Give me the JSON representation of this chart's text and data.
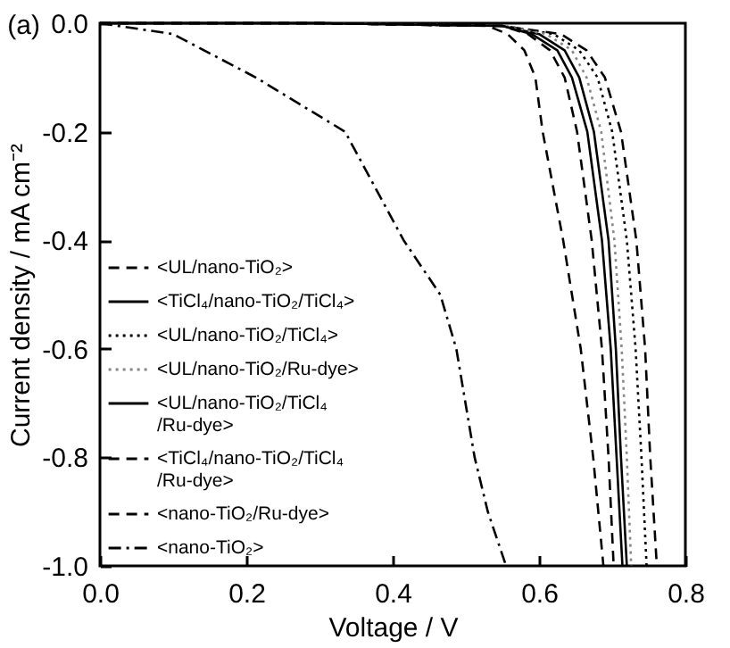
{
  "chart_data": {
    "type": "line",
    "title": "(a)",
    "xlabel": "Voltage / V",
    "ylabel": "Current density / mA cm⁻²",
    "xlim": [
      0,
      0.8
    ],
    "xticks": [
      {
        "value": 0,
        "label": "0.0"
      },
      {
        "value": 0.2,
        "label": "0.2"
      },
      {
        "value": 0.4,
        "label": "0.4"
      },
      {
        "value": 0.6,
        "label": "0.6"
      },
      {
        "value": 0.8,
        "label": "0.8"
      }
    ],
    "ylim": [
      -1.0,
      0
    ],
    "yticks": [
      {
        "value": 0,
        "label": "0.0"
      },
      {
        "value": -0.2,
        "label": "-0.2"
      },
      {
        "value": -0.4,
        "label": "-0.4"
      },
      {
        "value": -0.6,
        "label": "-0.6"
      },
      {
        "value": -0.8,
        "label": "-0.8"
      },
      {
        "value": -1.0,
        "label": "-1.0"
      }
    ],
    "legend": "bottom left",
    "grid": false,
    "marker": "none",
    "series": [
      {
        "name": "<UL/nano-TiO₂>",
        "color": "#000000",
        "line_style": "dashed",
        "x": [
          0,
          0.3,
          0.55,
          0.63,
          0.665,
          0.69,
          0.712,
          0.733,
          0.745,
          0.752,
          0.761
        ],
        "values": [
          0,
          0,
          -0.005,
          -0.02,
          -0.05,
          -0.1,
          -0.2,
          -0.4,
          -0.6,
          -0.8,
          -1.0
        ]
      },
      {
        "name": "<TiCl₄/nano-TiO₂/TiCl₄>",
        "color": "#000000",
        "line_style": "solid",
        "x": [
          0,
          0.3,
          0.55,
          0.6,
          0.635,
          0.655,
          0.675,
          0.695,
          0.705,
          0.712,
          0.72
        ],
        "values": [
          0,
          0,
          -0.005,
          -0.02,
          -0.05,
          -0.1,
          -0.2,
          -0.4,
          -0.6,
          -0.8,
          -1.0
        ]
      },
      {
        "name": "<UL/nano-TiO₂/TiCl₄>",
        "color": "#000000",
        "line_style": "dotted",
        "x": [
          0,
          0.3,
          0.55,
          0.62,
          0.655,
          0.68,
          0.7,
          0.72,
          0.732,
          0.74,
          0.747
        ],
        "values": [
          0,
          0,
          -0.005,
          -0.02,
          -0.05,
          -0.1,
          -0.2,
          -0.4,
          -0.6,
          -0.8,
          -1.0
        ]
      },
      {
        "name": "<UL/nano-TiO₂/Ru-dye>",
        "color": "#888888",
        "line_style": "dotted",
        "x": [
          0,
          0.3,
          0.55,
          0.61,
          0.645,
          0.665,
          0.685,
          0.703,
          0.713,
          0.72,
          0.726
        ],
        "values": [
          0,
          0,
          -0.005,
          -0.02,
          -0.05,
          -0.1,
          -0.2,
          -0.4,
          -0.6,
          -0.8,
          -1.0
        ]
      },
      {
        "name": "<UL/nano-TiO₂/TiCl₄/Ru-dye>",
        "color": "#000000",
        "line_style": "solid",
        "x": [
          0,
          0.3,
          0.55,
          0.59,
          0.625,
          0.645,
          0.666,
          0.686,
          0.698,
          0.706,
          0.714
        ],
        "values": [
          0,
          0,
          -0.005,
          -0.02,
          -0.05,
          -0.1,
          -0.2,
          -0.4,
          -0.6,
          -0.8,
          -1.0
        ]
      },
      {
        "name": "<TiCl₄/nano-TiO₂/TiCl₄/Ru-dye>",
        "color": "#000000",
        "line_style": "dashed",
        "x": [
          0,
          0.3,
          0.55,
          0.585,
          0.615,
          0.635,
          0.652,
          0.672,
          0.686,
          0.695,
          0.702
        ],
        "values": [
          0,
          0,
          -0.005,
          -0.02,
          -0.05,
          -0.1,
          -0.2,
          -0.4,
          -0.6,
          -0.8,
          -1.0
        ]
      },
      {
        "name": "<nano-TiO₂/Ru-dye>",
        "color": "#000000",
        "line_style": "dashed",
        "x": [
          0,
          0.3,
          0.53,
          0.557,
          0.58,
          0.595,
          0.605,
          0.633,
          0.657,
          0.674,
          0.688
        ],
        "values": [
          0,
          0,
          -0.005,
          -0.02,
          -0.05,
          -0.1,
          -0.2,
          -0.4,
          -0.6,
          -0.8,
          -1.0
        ]
      },
      {
        "name": "<nano-TiO₂>",
        "color": "#000000",
        "line_style": "dashdot",
        "x": [
          0,
          0.1,
          0.213,
          0.335,
          0.415,
          0.465,
          0.487,
          0.512,
          0.53,
          0.555
        ],
        "values": [
          0,
          -0.02,
          -0.1,
          -0.2,
          -0.4,
          -0.5,
          -0.6,
          -0.8,
          -0.9,
          -1.0
        ]
      }
    ]
  }
}
